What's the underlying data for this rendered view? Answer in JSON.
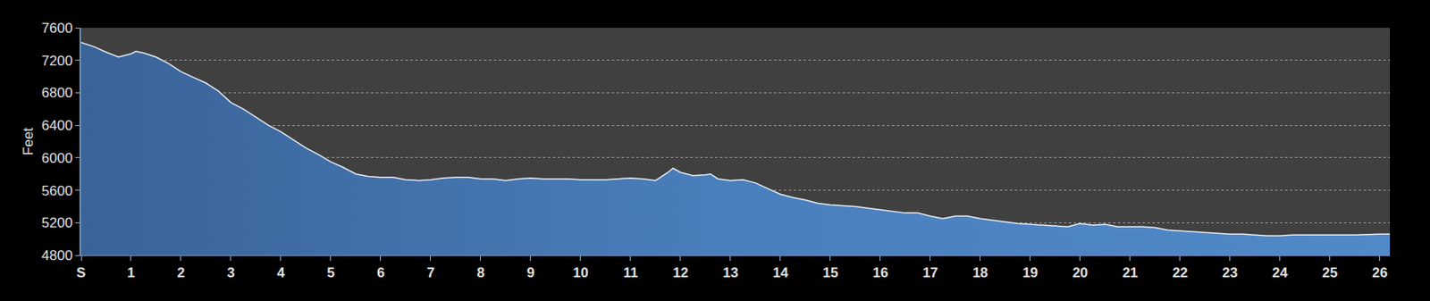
{
  "chart_data": {
    "type": "area",
    "y_label": "Feet",
    "x": [
      0,
      0.25,
      0.5,
      0.75,
      1.0,
      1.1,
      1.25,
      1.5,
      1.75,
      2.0,
      2.25,
      2.5,
      2.75,
      3.0,
      3.25,
      3.5,
      3.75,
      4.0,
      4.25,
      4.5,
      4.75,
      5.0,
      5.25,
      5.5,
      5.75,
      6.0,
      6.25,
      6.5,
      6.75,
      7.0,
      7.25,
      7.5,
      7.75,
      8.0,
      8.25,
      8.5,
      8.75,
      9.0,
      9.25,
      9.5,
      9.75,
      10.0,
      10.25,
      10.5,
      10.75,
      11.0,
      11.25,
      11.5,
      11.75,
      11.85,
      12.0,
      12.25,
      12.5,
      12.6,
      12.75,
      13.0,
      13.25,
      13.5,
      13.75,
      14.0,
      14.25,
      14.5,
      14.75,
      15.0,
      15.25,
      15.5,
      15.75,
      16.0,
      16.25,
      16.5,
      16.75,
      17.0,
      17.25,
      17.5,
      17.75,
      18.0,
      18.25,
      18.5,
      18.75,
      19.0,
      19.25,
      19.5,
      19.75,
      20.0,
      20.25,
      20.5,
      20.75,
      21.0,
      21.25,
      21.5,
      21.75,
      22.0,
      22.25,
      22.5,
      22.75,
      23.0,
      23.25,
      23.5,
      23.75,
      24.0,
      24.25,
      24.5,
      25.0,
      25.5,
      26.0,
      26.2
    ],
    "values": [
      7420,
      7370,
      7300,
      7240,
      7280,
      7310,
      7290,
      7240,
      7160,
      7060,
      6990,
      6920,
      6820,
      6680,
      6600,
      6500,
      6400,
      6320,
      6220,
      6120,
      6040,
      5950,
      5880,
      5800,
      5770,
      5760,
      5760,
      5730,
      5720,
      5730,
      5750,
      5760,
      5760,
      5740,
      5740,
      5720,
      5740,
      5750,
      5740,
      5740,
      5740,
      5730,
      5730,
      5730,
      5740,
      5750,
      5740,
      5720,
      5820,
      5870,
      5820,
      5780,
      5790,
      5800,
      5740,
      5720,
      5730,
      5690,
      5620,
      5550,
      5510,
      5480,
      5440,
      5420,
      5410,
      5400,
      5380,
      5360,
      5340,
      5320,
      5320,
      5280,
      5250,
      5280,
      5280,
      5250,
      5230,
      5210,
      5190,
      5180,
      5170,
      5160,
      5150,
      5190,
      5170,
      5180,
      5150,
      5150,
      5150,
      5140,
      5110,
      5100,
      5090,
      5080,
      5070,
      5060,
      5060,
      5050,
      5040,
      5040,
      5050,
      5050,
      5050,
      5050,
      5060,
      5060
    ],
    "color": "#4a7fbd",
    "xlim": [
      0,
      26.2
    ],
    "xticks": [
      {
        "value": 0,
        "label": "S"
      },
      1,
      2,
      3,
      4,
      5,
      6,
      7,
      8,
      9,
      10,
      11,
      12,
      13,
      14,
      15,
      16,
      17,
      18,
      19,
      20,
      21,
      22,
      23,
      24,
      25,
      26
    ],
    "ylim": [
      4800,
      7600
    ],
    "yticks": [
      4800,
      5200,
      5600,
      6000,
      6400,
      6800,
      7200,
      7600
    ],
    "grid": true
  }
}
